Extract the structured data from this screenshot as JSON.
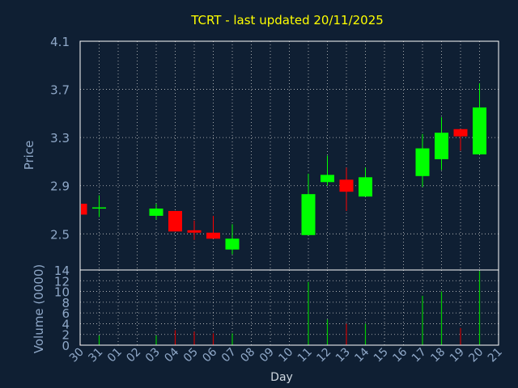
{
  "chart_data": {
    "type": "candlestick",
    "title": "TCRT - last updated 20/11/2025",
    "xlabel": "Day",
    "price_panel": {
      "ylabel": "Price",
      "ylim": [
        2.2,
        4.1
      ],
      "ticks": [
        2.5,
        2.9,
        3.3,
        3.7,
        4.1
      ],
      "tick_labels": [
        "2.5",
        "2.9",
        "3.3",
        "3.7",
        "4.1"
      ],
      "grid": true
    },
    "volume_panel": {
      "ylabel": "Volume (0000)",
      "ylim": [
        0,
        14
      ],
      "ticks": [
        0,
        2,
        4,
        6,
        8,
        10,
        12,
        14
      ],
      "tick_labels": [
        "0",
        "2",
        "4",
        "6",
        "8",
        "10",
        "12",
        "14"
      ],
      "grid": true
    },
    "days": [
      "30",
      "31",
      "01",
      "02",
      "03",
      "04",
      "05",
      "06",
      "07",
      "08",
      "09",
      "10",
      "11",
      "12",
      "13",
      "14",
      "15",
      "16",
      "17",
      "18",
      "19",
      "20",
      "21"
    ],
    "candles": [
      {
        "day": "30",
        "open": 2.75,
        "close": 2.66,
        "high": 2.75,
        "low": 2.66,
        "volume": 0.2
      },
      {
        "day": "31",
        "open": 2.71,
        "close": 2.72,
        "high": 2.82,
        "low": 2.64,
        "volume": 1.8
      },
      {
        "day": "03",
        "open": 2.65,
        "close": 2.71,
        "high": 2.75,
        "low": 2.62,
        "volume": 1.8
      },
      {
        "day": "04",
        "open": 2.69,
        "close": 2.52,
        "high": 2.69,
        "low": 2.52,
        "volume": 2.8
      },
      {
        "day": "05",
        "open": 2.53,
        "close": 2.51,
        "high": 2.61,
        "low": 2.45,
        "volume": 2.5
      },
      {
        "day": "06",
        "open": 2.51,
        "close": 2.46,
        "high": 2.65,
        "low": 2.46,
        "volume": 2.2
      },
      {
        "day": "07",
        "open": 2.37,
        "close": 2.46,
        "high": 2.58,
        "low": 2.33,
        "volume": 2.2
      },
      {
        "day": "11",
        "open": 2.49,
        "close": 2.83,
        "high": 3.0,
        "low": 2.49,
        "volume": 11.8
      },
      {
        "day": "12",
        "open": 2.93,
        "close": 2.99,
        "high": 3.15,
        "low": 2.9,
        "volume": 4.8
      },
      {
        "day": "13",
        "open": 2.95,
        "close": 2.85,
        "high": 3.05,
        "low": 2.69,
        "volume": 4.0
      },
      {
        "day": "14",
        "open": 2.81,
        "close": 2.97,
        "high": 3.05,
        "low": 2.81,
        "volume": 4.0
      },
      {
        "day": "17",
        "open": 2.98,
        "close": 3.21,
        "high": 3.33,
        "low": 2.89,
        "volume": 9.2
      },
      {
        "day": "18",
        "open": 3.12,
        "close": 3.34,
        "high": 3.47,
        "low": 3.03,
        "volume": 10.0
      },
      {
        "day": "19",
        "open": 3.37,
        "close": 3.31,
        "high": 3.37,
        "low": 3.19,
        "volume": 3.2
      },
      {
        "day": "20",
        "open": 3.16,
        "close": 3.55,
        "high": 3.75,
        "low": 3.16,
        "volume": 13.8
      }
    ],
    "colors": {
      "background": "#0f1f33",
      "up": "#00ff00",
      "down": "#ff0000",
      "up_volume": "#00cc00",
      "down_volume": "#cc0000",
      "title": "#ffff00",
      "axis_text": "#8fa8c8",
      "frame": "#ffffff",
      "grid": "#c8c8c8"
    }
  }
}
